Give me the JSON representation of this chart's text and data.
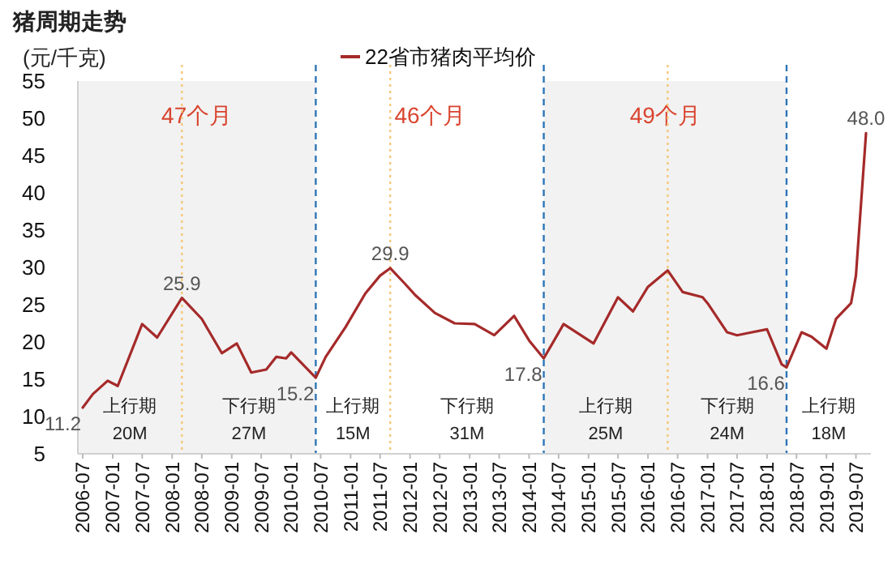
{
  "chart_data": {
    "type": "line",
    "title": "猪周期走势",
    "ylabel": "(元/千克)",
    "legend": "top",
    "grid": false,
    "xlim": [
      "2006-06",
      "2019-10"
    ],
    "xticks": [
      "2006-07",
      "2007-01",
      "2007-07",
      "2008-01",
      "2008-07",
      "2009-01",
      "2009-07",
      "2010-01",
      "2010-07",
      "2011-01",
      "2011-07",
      "2012-01",
      "2012-07",
      "2013-01",
      "2013-07",
      "2014-01",
      "2014-07",
      "2015-01",
      "2015-07",
      "2016-01",
      "2016-07",
      "2017-01",
      "2017-07",
      "2018-01",
      "2018-07",
      "2019-01",
      "2019-07"
    ],
    "ylim": [
      5,
      55
    ],
    "yticks": [
      5,
      10,
      15,
      20,
      25,
      30,
      35,
      40,
      45,
      50,
      55
    ],
    "series": [
      {
        "name": "22省市猪肉平均价",
        "color": "#a52a2a",
        "x": [
          "2006-07",
          "2006-09",
          "2006-12",
          "2007-02",
          "2007-07",
          "2007-10",
          "2008-03",
          "2008-07",
          "2008-11",
          "2009-02",
          "2009-05",
          "2009-08",
          "2009-10",
          "2009-12",
          "2010-01",
          "2010-06",
          "2010-08",
          "2010-12",
          "2011-04",
          "2011-07",
          "2011-09",
          "2011-12",
          "2012-02",
          "2012-06",
          "2012-10",
          "2013-02",
          "2013-06",
          "2013-10",
          "2014-01",
          "2014-04",
          "2014-08",
          "2015-02",
          "2015-07",
          "2015-10",
          "2016-01",
          "2016-05",
          "2016-08",
          "2016-12",
          "2017-01",
          "2017-05",
          "2017-07",
          "2017-10",
          "2018-01",
          "2018-04",
          "2018-05",
          "2018-08",
          "2018-10",
          "2019-01",
          "2019-03",
          "2019-06",
          "2019-07",
          "2019-09"
        ],
        "values": [
          11.2,
          13,
          14.8,
          14.1,
          22.4,
          20.6,
          25.9,
          23.1,
          18.5,
          19.8,
          15.9,
          16.3,
          18,
          17.8,
          18.6,
          15.2,
          18,
          22,
          26.5,
          28.9,
          29.9,
          27.8,
          26.3,
          23.9,
          22.5,
          22.4,
          20.9,
          23.5,
          20.2,
          17.8,
          22.4,
          19.8,
          26,
          24.1,
          27.4,
          29.6,
          26.7,
          26,
          25.2,
          21.3,
          20.9,
          21.3,
          21.7,
          17,
          16.6,
          21.3,
          20.7,
          19.1,
          23.1,
          25.2,
          28.9,
          48.0
        ]
      }
    ],
    "bands": [
      {
        "axis": "x",
        "from": "2006-06",
        "to": "2010-06",
        "label": "47个月",
        "color": "#f2f2f2"
      },
      {
        "axis": "x",
        "from": "2014-04",
        "to": "2018-05",
        "label": "49个月",
        "color": "#f2f2f2"
      }
    ],
    "ref_lines": [
      {
        "axis": "x",
        "value": "2010-06",
        "color": "#2e75b6",
        "line_style": "dashed"
      },
      {
        "axis": "x",
        "value": "2014-04",
        "color": "#2e75b6",
        "line_style": "dashed"
      },
      {
        "axis": "x",
        "value": "2018-05",
        "color": "#2e75b6",
        "line_style": "dashed"
      },
      {
        "axis": "x",
        "value": "2008-03",
        "color": "#f4c77a",
        "line_style": "dotted"
      },
      {
        "axis": "x",
        "value": "2011-09",
        "color": "#f4c77a",
        "line_style": "dotted"
      },
      {
        "axis": "x",
        "value": "2016-05",
        "color": "#f4c77a",
        "line_style": "dotted"
      }
    ],
    "annotations": [
      {
        "text": "11.2",
        "x": "2006-07",
        "y": 11.2
      },
      {
        "text": "25.9",
        "x": "2008-03",
        "y": 25.9
      },
      {
        "text": "15.2",
        "x": "2010-06",
        "y": 15.2
      },
      {
        "text": "29.9",
        "x": "2011-09",
        "y": 29.9
      },
      {
        "text": "17.8",
        "x": "2014-04",
        "y": 17.8
      },
      {
        "text": "16.6",
        "x": "2018-05",
        "y": 16.6
      },
      {
        "text": "48.0",
        "x": "2019-09",
        "y": 48.0
      },
      "46个月",
      "上行期\n20M",
      "下行期\n27M",
      "上行期\n15M",
      "下行期\n31M",
      "上行期\n25M",
      "下行期\n24M",
      "上行期\n18M"
    ]
  }
}
